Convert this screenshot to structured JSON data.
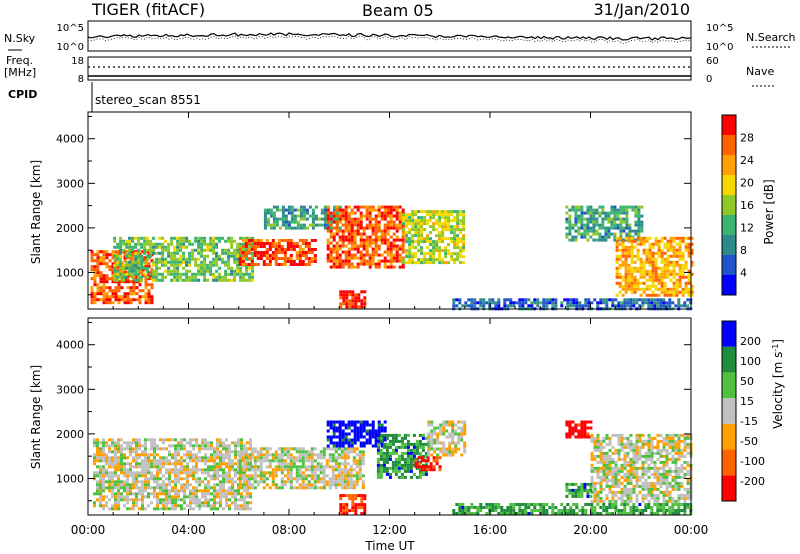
{
  "header": {
    "radar": "TIGER (fitACF)",
    "beam": "Beam 05",
    "date": "31/Jan/2010"
  },
  "noise_panel": {
    "left_label": "N.Sky",
    "right_label": "N.Search",
    "left_ticks": [
      "10^5",
      "10^0"
    ],
    "right_ticks": [
      "10^5",
      "10^0"
    ]
  },
  "freq_panel": {
    "left_label_line1": "Freq.",
    "left_label_line2": "[MHz]",
    "right_label": "Nave",
    "left_ticks": [
      "18",
      "8"
    ],
    "right_ticks": [
      "60",
      "0"
    ]
  },
  "cpid": {
    "label": "CPID",
    "value": "stereo_scan 8551"
  },
  "x_axis": {
    "label": "Time UT",
    "ticks": [
      "00:00",
      "04:00",
      "08:00",
      "12:00",
      "16:00",
      "20:00",
      "00:00"
    ]
  },
  "chart_data": [
    {
      "type": "heatmap",
      "title": "",
      "xlabel": "Time UT",
      "ylabel": "Slant Range [km]",
      "x_range_hours": [
        0,
        24
      ],
      "ylim": [
        180,
        4600
      ],
      "y_ticks": [
        1000,
        2000,
        3000,
        4000
      ],
      "colorbar": {
        "label": "Power [dB]",
        "range": [
          0,
          32
        ],
        "ticks": [
          4,
          8,
          12,
          16,
          20,
          24,
          28
        ],
        "colors": [
          "#0000ff",
          "#1e55c8",
          "#2e8b8b",
          "#3cb371",
          "#90c828",
          "#f5d800",
          "#ffa000",
          "#ff6400",
          "#ff0000"
        ]
      },
      "regions": [
        {
          "t": [
            0.1,
            2.6
          ],
          "r": [
            300,
            1500
          ],
          "level": 0.85
        },
        {
          "t": [
            1.0,
            6.5
          ],
          "r": [
            800,
            1800
          ],
          "level": 0.45
        },
        {
          "t": [
            6.0,
            9.0
          ],
          "r": [
            1200,
            1750
          ],
          "level": 0.88
        },
        {
          "t": [
            7.0,
            10.0
          ],
          "r": [
            2000,
            2500
          ],
          "level": 0.35
        },
        {
          "t": [
            10.0,
            11.0
          ],
          "r": [
            220,
            600
          ],
          "level": 0.95
        },
        {
          "t": [
            9.5,
            12.5
          ],
          "r": [
            1100,
            2500
          ],
          "level": 0.85
        },
        {
          "t": [
            12.5,
            15.0
          ],
          "r": [
            1200,
            2400
          ],
          "level": 0.55
        },
        {
          "t": [
            14.5,
            24.0
          ],
          "r": [
            200,
            420
          ],
          "level": 0.2
        },
        {
          "t": [
            19.0,
            22.0
          ],
          "r": [
            1700,
            2500
          ],
          "level": 0.35
        },
        {
          "t": [
            21.0,
            24.0
          ],
          "r": [
            500,
            1800
          ],
          "level": 0.7
        }
      ]
    },
    {
      "type": "heatmap",
      "title": "",
      "xlabel": "Time UT",
      "ylabel": "Slant Range [km]",
      "x_range_hours": [
        0,
        24
      ],
      "ylim": [
        180,
        4600
      ],
      "y_ticks": [
        1000,
        2000,
        3000,
        4000
      ],
      "colorbar": {
        "label": "Velocity [m s^-1]",
        "range": [
          -250,
          250
        ],
        "ticks": [
          200,
          100,
          50,
          15,
          -15,
          -50,
          -100,
          -200
        ],
        "colors": [
          "#ff0000",
          "#ff6400",
          "#ffa000",
          "#c0c0c0",
          "#50c040",
          "#1e8c3c",
          "#0000ff"
        ]
      },
      "regions": [
        {
          "t": [
            0.2,
            6.5
          ],
          "r": [
            300,
            1900
          ],
          "level": 0.5
        },
        {
          "t": [
            6.0,
            11.0
          ],
          "r": [
            800,
            1700
          ],
          "level": 0.5
        },
        {
          "t": [
            9.5,
            11.8
          ],
          "r": [
            1700,
            2300
          ],
          "level": 0.97
        },
        {
          "t": [
            10.0,
            11.0
          ],
          "r": [
            220,
            650
          ],
          "level": 0.15
        },
        {
          "t": [
            11.5,
            13.5
          ],
          "r": [
            1000,
            2000
          ],
          "level": 0.75
        },
        {
          "t": [
            13.0,
            14.0
          ],
          "r": [
            1200,
            1500
          ],
          "level": 0.05
        },
        {
          "t": [
            13.5,
            15.0
          ],
          "r": [
            1500,
            2300
          ],
          "level": 0.5
        },
        {
          "t": [
            14.5,
            24.0
          ],
          "r": [
            200,
            450
          ],
          "level": 0.72
        },
        {
          "t": [
            19.0,
            20.0
          ],
          "r": [
            1900,
            2300
          ],
          "level": 0.03
        },
        {
          "t": [
            20.0,
            24.0
          ],
          "r": [
            500,
            2000
          ],
          "level": 0.5
        },
        {
          "t": [
            19.0,
            20.0
          ],
          "r": [
            600,
            900
          ],
          "level": 0.75
        }
      ]
    }
  ]
}
